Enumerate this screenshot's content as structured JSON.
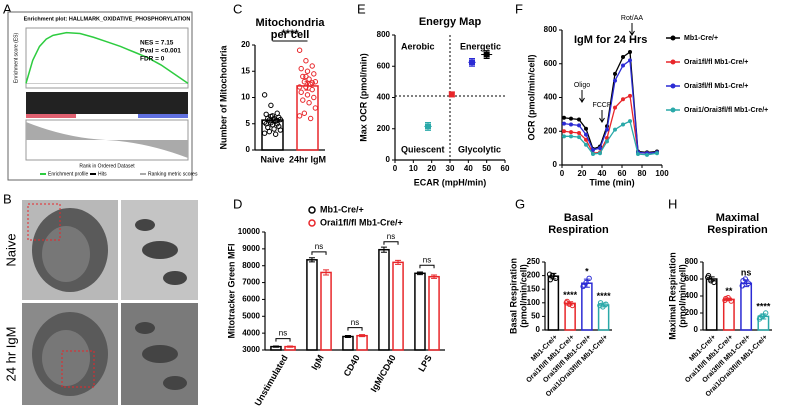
{
  "chart_data": [
    {
      "panel": "A",
      "type": "enrichment",
      "title": "Enrichment plot: HALLMARK_OXIDATIVE_PHOSPHORYLATION",
      "ylabel": "Enrichment score (ES)",
      "xlabel": "Rank in Ordered Dataset",
      "annotations": [
        "NES = 7.15",
        "Pval = <0.001",
        "FDR = 0"
      ],
      "x": [
        0,
        500,
        1000,
        1500,
        2000,
        3000,
        4000,
        5000,
        6000,
        7000,
        8000,
        9000,
        10000,
        11000,
        12000
      ],
      "values": [
        0,
        0.25,
        0.4,
        0.48,
        0.52,
        0.55,
        0.54,
        0.5,
        0.45,
        0.4,
        0.34,
        0.28,
        0.2,
        0.1,
        0
      ],
      "xlim": [
        0,
        12000
      ],
      "ylim": [
        -0.05,
        0.6
      ],
      "color": "#2ecc40",
      "legend": [
        "Enrichment profile",
        "Hits",
        "Ranking metric scores"
      ]
    },
    {
      "panel": "B",
      "type": "image",
      "rows": [
        "Naive",
        "24 hr IgM"
      ]
    },
    {
      "panel": "C",
      "type": "bar",
      "title": [
        "Mitochondria",
        "per cell"
      ],
      "ylabel": "Number of Mitochondria",
      "categories": [
        "Naive",
        "24hr IgM"
      ],
      "values": [
        5.7,
        12.2
      ],
      "errors": [
        0.4,
        0.8
      ],
      "colors": [
        "#000000",
        "#e8262a"
      ],
      "points": [
        [
          10.5,
          8.5,
          7,
          6.8,
          6.5,
          6.2,
          6,
          6,
          5.8,
          5.7,
          5.5,
          5.3,
          5.2,
          5,
          5,
          4.8,
          4.5,
          4.3,
          4,
          3.8,
          3.5,
          3,
          3.2,
          6.4,
          5.6
        ],
        [
          19,
          17,
          16,
          15.5,
          15,
          14.5,
          14,
          13.5,
          13,
          13,
          12.5,
          12,
          12,
          11.5,
          11,
          10.5,
          10,
          9.5,
          9,
          8,
          7,
          6,
          6.5,
          14,
          12.8
        ]
      ],
      "significance": "****",
      "ylim": [
        0,
        20
      ],
      "yticks": [
        0,
        5,
        10,
        15,
        20
      ]
    },
    {
      "panel": "D",
      "type": "bar",
      "ylabel": "Mitotracker Green MFI",
      "categories": [
        "Unstimulated",
        "IgM",
        "CD40",
        "IgM/CD40",
        "LPS"
      ],
      "series": [
        {
          "name": "Mb1-Cre/+",
          "color": "#000000",
          "values": [
            3200,
            8350,
            3800,
            8950,
            7550
          ],
          "errors": [
            40,
            120,
            60,
            150,
            80
          ]
        },
        {
          "name": "Orai1fl/fl Mb1-Cre/+",
          "color": "#e8262a",
          "values": [
            3200,
            7600,
            3850,
            8200,
            7350
          ],
          "errors": [
            40,
            150,
            60,
            120,
            100
          ]
        }
      ],
      "annotations": [
        "ns",
        "ns",
        "ns",
        "ns",
        "ns"
      ],
      "ylim": [
        3000,
        10000
      ],
      "yticks": [
        3000,
        4000,
        5000,
        6000,
        7000,
        8000,
        9000,
        10000
      ]
    },
    {
      "panel": "E",
      "type": "scatter",
      "title": "Energy Map",
      "xlabel": "ECAR (mpH/min)",
      "ylabel": "Max OCR (pmol/min)",
      "x": [
        50,
        42,
        31,
        18
      ],
      "values": [
        675,
        625,
        420,
        215
      ],
      "xerr": [
        3,
        2,
        1,
        2
      ],
      "yerr": [
        25,
        25,
        15,
        25
      ],
      "colors": [
        "#000000",
        "#2b2bd4",
        "#e8262a",
        "#2aa9a9"
      ],
      "quadrants": [
        "Aerobic",
        "Energetic",
        "Quiescent",
        "Glycolytic"
      ],
      "ref_x": 30,
      "ref_y": 410,
      "xlim": [
        0,
        60
      ],
      "xticks": [
        0,
        10,
        20,
        30,
        40,
        50,
        60
      ],
      "ylim": [
        0,
        800
      ],
      "yticks": [
        0,
        200,
        400,
        600,
        800
      ]
    },
    {
      "panel": "F",
      "type": "line",
      "title": "IgM for 24 Hrs",
      "xlabel": "Time (min)",
      "ylabel": "OCR (pmol/min/cell)",
      "x": [
        2,
        9,
        17,
        24,
        31,
        38,
        45,
        53,
        61,
        68,
        76,
        85,
        95
      ],
      "series": [
        {
          "name": "Mb1-Cre/+",
          "color": "#000000",
          "values": [
            280,
            275,
            270,
            215,
            95,
            110,
            230,
            540,
            640,
            670,
            80,
            75,
            80
          ]
        },
        {
          "name": "Orai1fl/fl Mb1-Cre/+",
          "color": "#e8262a",
          "values": [
            200,
            195,
            190,
            150,
            70,
            75,
            160,
            340,
            390,
            410,
            75,
            70,
            75
          ]
        },
        {
          "name": "Orai3fl/fl Mb1-Cre/+",
          "color": "#2b2bd4",
          "values": [
            245,
            240,
            235,
            180,
            90,
            100,
            210,
            500,
            590,
            620,
            75,
            70,
            75
          ]
        },
        {
          "name": "Orai1/Orai3fl/fl Mb1-Cre/+",
          "color": "#2aa9a9",
          "values": [
            170,
            170,
            165,
            120,
            65,
            70,
            140,
            210,
            240,
            260,
            65,
            60,
            70
          ]
        }
      ],
      "injections": [
        {
          "label": "Oligo",
          "x": 20
        },
        {
          "label": "FCCP",
          "x": 40
        },
        {
          "label": "Rot/AA",
          "x": 70
        }
      ],
      "xlim": [
        0,
        100
      ],
      "xticks": [
        0,
        20,
        40,
        60,
        80,
        100
      ],
      "ylim": [
        0,
        800
      ],
      "yticks": [
        0,
        200,
        400,
        600,
        800
      ]
    },
    {
      "panel": "G",
      "type": "bar",
      "title": [
        "Basal",
        "Respiration"
      ],
      "ylabel": [
        "Basal Respiration",
        "(pmol/min/cell)"
      ],
      "categories": [
        "Mb1-Cre/+",
        "Orai1fl/fl Mb1-Cre/+",
        "Orai3fl/fl Mb1-Cre/+",
        "Orai1/Orai3fl/fl Mb1-Cre/+"
      ],
      "values": [
        198,
        98,
        172,
        92
      ],
      "errors": [
        10,
        6,
        15,
        7
      ],
      "colors": [
        "#000000",
        "#e8262a",
        "#2b2bd4",
        "#2aa9a9"
      ],
      "points": [
        [
          205,
          200,
          190,
          185
        ],
        [
          100,
          95,
          90,
          105
        ],
        [
          160,
          175,
          190,
          165
        ],
        [
          90,
          85,
          95,
          100
        ]
      ],
      "significance": [
        null,
        "****",
        "*",
        "****"
      ],
      "ylim": [
        0,
        250
      ],
      "yticks": [
        0,
        50,
        100,
        150,
        200,
        250
      ]
    },
    {
      "panel": "H",
      "type": "bar",
      "title": [
        "Maximal",
        "Respiration"
      ],
      "ylabel": [
        "Maximal Respiration",
        "(pmol/min/cell)"
      ],
      "categories": [
        "Mb1-Cre/+",
        "Orai1fl/fl Mb1-Cre/+",
        "Orai3fl/fl Mb1-Cre/+",
        "Orai1/Orai3fl/fl Mb1-Cre/+"
      ],
      "values": [
        600,
        360,
        550,
        160
      ],
      "errors": [
        25,
        15,
        40,
        30
      ],
      "colors": [
        "#000000",
        "#e8262a",
        "#2b2bd4",
        "#2aa9a9"
      ],
      "points": [
        [
          620,
          580,
          560,
          640
        ],
        [
          350,
          380,
          340,
          370
        ],
        [
          520,
          600,
          550,
          580
        ],
        [
          130,
          160,
          200,
          150
        ]
      ],
      "significance": [
        null,
        "**",
        "ns",
        "****"
      ],
      "ylim": [
        0,
        800
      ],
      "yticks": [
        0,
        200,
        400,
        600,
        800
      ]
    }
  ]
}
